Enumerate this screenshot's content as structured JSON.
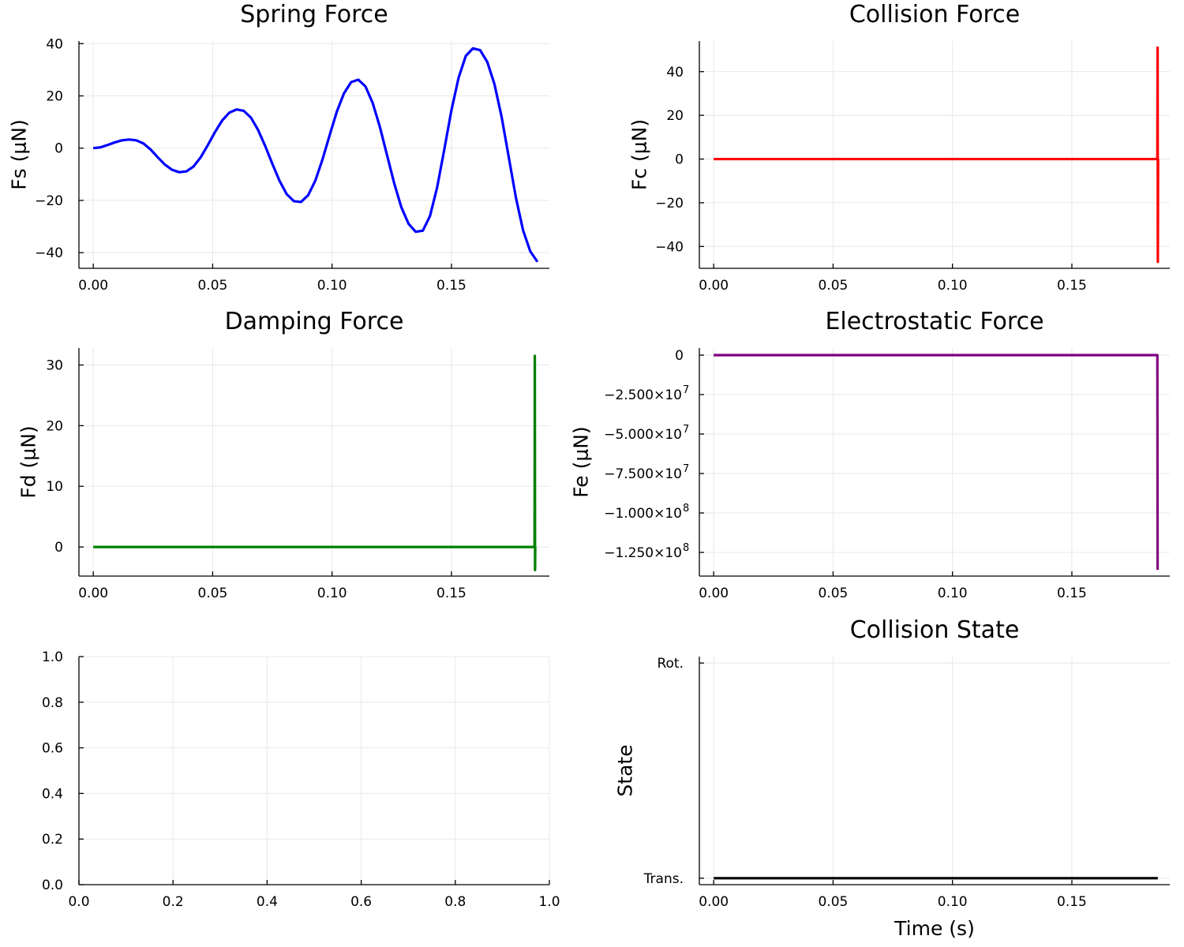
{
  "chart_data": [
    {
      "type": "line",
      "title": "Spring Force",
      "ylabel": "Fs (μN)",
      "xlabel": "",
      "xlim": [
        -0.006,
        0.191
      ],
      "ylim": [
        -46,
        41
      ],
      "xticks": [
        0,
        0.05,
        0.1,
        0.15
      ],
      "xtick_labels": [
        "0.00",
        "0.05",
        "0.10",
        "0.15"
      ],
      "yticks": [
        40,
        20,
        0,
        -20,
        -40
      ],
      "ytick_labels": [
        "40",
        "20",
        "0",
        "−20",
        "−40"
      ],
      "grid": true,
      "series": [
        {
          "color": "#0000ff",
          "x": [
            0,
            0.003,
            0.006,
            0.009,
            0.012,
            0.015,
            0.018,
            0.021,
            0.024,
            0.027,
            0.03,
            0.033,
            0.036,
            0.039,
            0.042,
            0.045,
            0.048,
            0.051,
            0.054,
            0.057,
            0.06,
            0.063,
            0.066,
            0.069,
            0.072,
            0.075,
            0.078,
            0.081,
            0.084,
            0.087,
            0.09,
            0.093,
            0.096,
            0.099,
            0.102,
            0.105,
            0.108,
            0.111,
            0.114,
            0.117,
            0.12,
            0.123,
            0.126,
            0.129,
            0.132,
            0.135,
            0.138,
            0.141,
            0.144,
            0.147,
            0.15,
            0.153,
            0.156,
            0.159,
            0.162,
            0.165,
            0.168,
            0.171,
            0.174,
            0.177,
            0.18,
            0.183,
            0.186
          ],
          "y": [
            0,
            0.3,
            1.2,
            2.2,
            3.0,
            3.3,
            3.0,
            1.8,
            -0.5,
            -3.5,
            -6.3,
            -8.3,
            -9.2,
            -8.9,
            -7.0,
            -3.5,
            1.2,
            6.2,
            10.6,
            13.6,
            14.8,
            14.3,
            11.7,
            7.0,
            0.8,
            -6.0,
            -12.5,
            -17.6,
            -20.3,
            -20.6,
            -18.0,
            -12.4,
            -4.3,
            5.0,
            14.0,
            21.0,
            25.3,
            26.2,
            23.6,
            17.3,
            8.2,
            -2.6,
            -13.4,
            -22.6,
            -28.9,
            -32.0,
            -31.6,
            -26.0,
            -15.0,
            -0.5,
            14.6,
            27.0,
            35.3,
            38.2,
            37.5,
            33.0,
            24.5,
            12.0,
            -3.5,
            -19.0,
            -31.5,
            -39.5,
            -43.5
          ]
        }
      ]
    },
    {
      "type": "line",
      "title": "Collision Force",
      "ylabel": "Fc (μN)",
      "xlabel": "",
      "xlim": [
        -0.006,
        0.191
      ],
      "ylim": [
        -50,
        54
      ],
      "xticks": [
        0,
        0.05,
        0.1,
        0.15
      ],
      "xtick_labels": [
        "0.00",
        "0.05",
        "0.10",
        "0.15"
      ],
      "yticks": [
        40,
        20,
        0,
        -20,
        -40
      ],
      "ytick_labels": [
        "40",
        "20",
        "0",
        "−20",
        "−40"
      ],
      "grid": true,
      "series": [
        {
          "color": "#ff0000",
          "x": [
            0,
            0.1858,
            0.1859,
            0.186,
            0.1861
          ],
          "y": [
            0,
            0,
            51,
            -47,
            0
          ]
        }
      ]
    },
    {
      "type": "line",
      "title": "Damping Force",
      "ylabel": "Fd (μN)",
      "xlabel": "",
      "xlim": [
        -0.006,
        0.191
      ],
      "ylim": [
        -4.8,
        32.8
      ],
      "xticks": [
        0,
        0.05,
        0.1,
        0.15
      ],
      "xtick_labels": [
        "0.00",
        "0.05",
        "0.10",
        "0.15"
      ],
      "yticks": [
        30,
        20,
        10,
        0
      ],
      "ytick_labels": [
        "30",
        "20",
        "10",
        "0"
      ],
      "grid": true,
      "series": [
        {
          "color": "#008000",
          "x": [
            0,
            0.1848,
            0.1849,
            0.185,
            0.1851
          ],
          "y": [
            0,
            0,
            31.5,
            -3.8,
            0
          ]
        }
      ]
    },
    {
      "type": "line",
      "title": "Electrostatic Force",
      "ylabel": "Fe (μN)",
      "xlabel": "",
      "xlim": [
        -0.006,
        0.191
      ],
      "ylim": [
        -140000000,
        4500000
      ],
      "xticks": [
        0,
        0.05,
        0.1,
        0.15
      ],
      "xtick_labels": [
        "0.00",
        "0.05",
        "0.10",
        "0.15"
      ],
      "yticks": [
        0,
        -25000000,
        -50000000,
        -75000000,
        -100000000,
        -125000000
      ],
      "ytick_labels": [
        {
          "mantissa": "0",
          "exp": ""
        },
        {
          "mantissa": "−2.500×10",
          "exp": "7"
        },
        {
          "mantissa": "−5.000×10",
          "exp": "7"
        },
        {
          "mantissa": "−7.500×10",
          "exp": "7"
        },
        {
          "mantissa": "−1.000×10",
          "exp": "8"
        },
        {
          "mantissa": "−1.250×10",
          "exp": "8"
        }
      ],
      "grid": true,
      "series": [
        {
          "color": "#800080",
          "x": [
            0,
            0.1858,
            0.1859
          ],
          "y": [
            0,
            0,
            -136000000
          ]
        }
      ]
    },
    {
      "type": "line",
      "title": "",
      "ylabel": "",
      "xlabel": "",
      "xlim": [
        0,
        1
      ],
      "ylim": [
        0,
        1
      ],
      "xticks": [
        0,
        0.2,
        0.4,
        0.6,
        0.8,
        1.0
      ],
      "xtick_labels": [
        "0.0",
        "0.2",
        "0.4",
        "0.6",
        "0.8",
        "1.0"
      ],
      "yticks": [
        1.0,
        0.8,
        0.6,
        0.4,
        0.2,
        0.0
      ],
      "ytick_labels": [
        "1.0",
        "0.8",
        "0.6",
        "0.4",
        "0.2",
        "0.0"
      ],
      "grid": true,
      "series": []
    },
    {
      "type": "line",
      "title": "Collision State",
      "ylabel": "State",
      "xlabel": "Time (s)",
      "xlim": [
        -0.006,
        0.191
      ],
      "ylim": [
        -0.03,
        1.03
      ],
      "xticks": [
        0,
        0.05,
        0.1,
        0.15
      ],
      "xtick_labels": [
        "0.00",
        "0.05",
        "0.10",
        "0.15"
      ],
      "yticks": [
        1,
        0
      ],
      "ytick_labels": [
        "Rot.",
        "Trans."
      ],
      "grid": true,
      "series": [
        {
          "color": "#000000",
          "x": [
            0,
            0.186
          ],
          "y": [
            0,
            0
          ]
        }
      ]
    }
  ]
}
